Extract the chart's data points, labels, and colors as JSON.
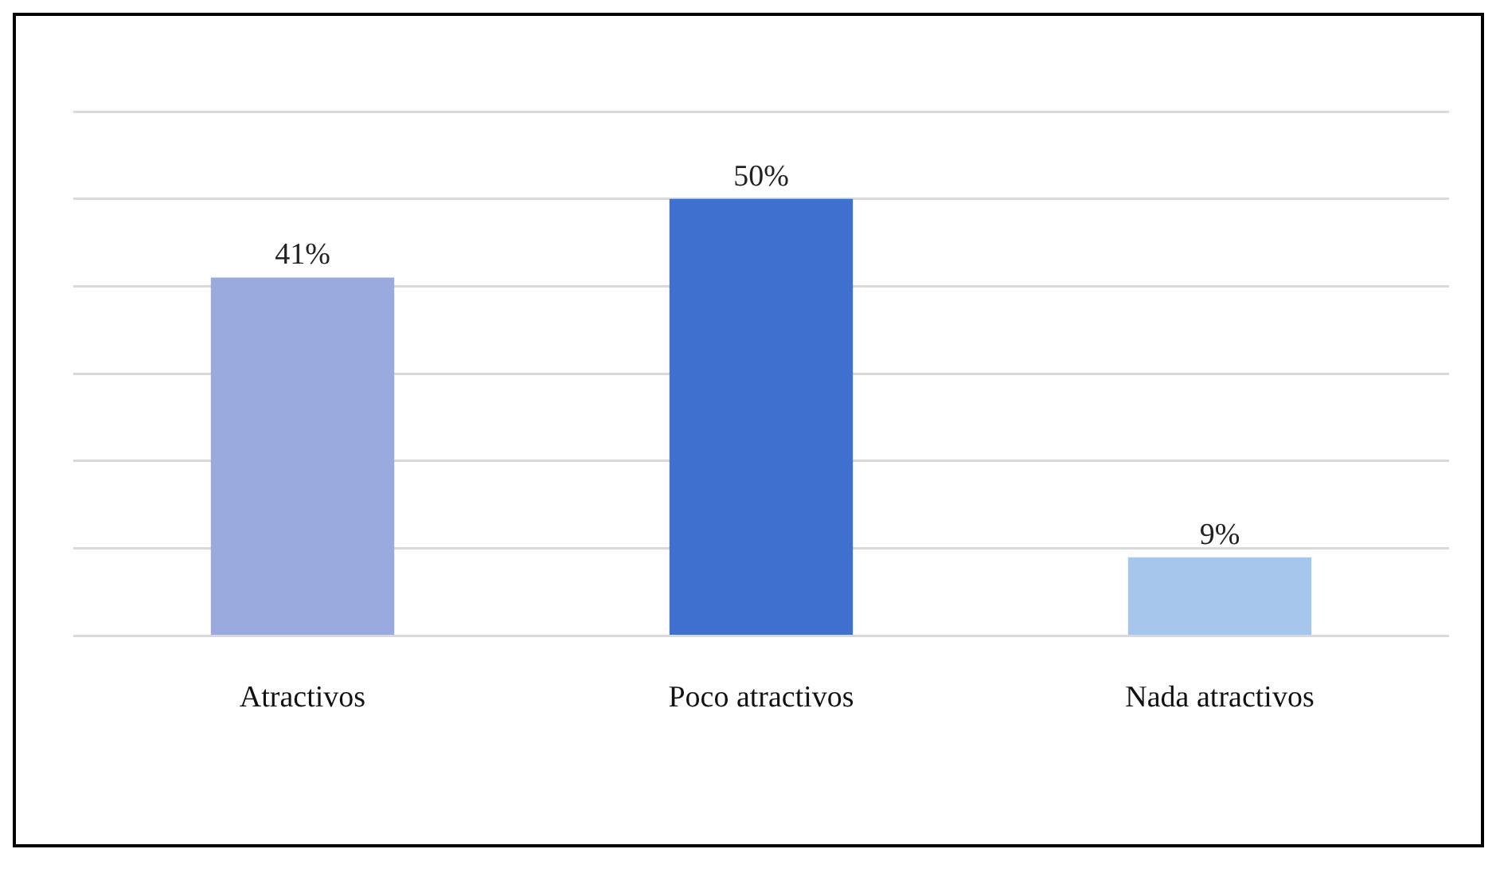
{
  "chart_data": {
    "type": "bar",
    "categories": [
      "Atractivos",
      "Poco atractivos",
      "Nada atractivos"
    ],
    "values": [
      41,
      50,
      9
    ],
    "colors": [
      "#9aaade",
      "#3f6fcf",
      "#a6c6ec"
    ],
    "value_labels": [
      "41%",
      "50%",
      "9%"
    ],
    "ylim": [
      0,
      60
    ],
    "yticks": [
      {
        "value": 0,
        "label": null
      },
      {
        "value": 10,
        "label": null
      },
      {
        "value": 20,
        "label": null
      },
      {
        "value": 30,
        "label": null
      },
      {
        "value": 40,
        "label": null
      },
      {
        "value": 50,
        "label": null
      },
      {
        "value": 60,
        "label": null
      }
    ],
    "grid": "y",
    "legend": false
  }
}
